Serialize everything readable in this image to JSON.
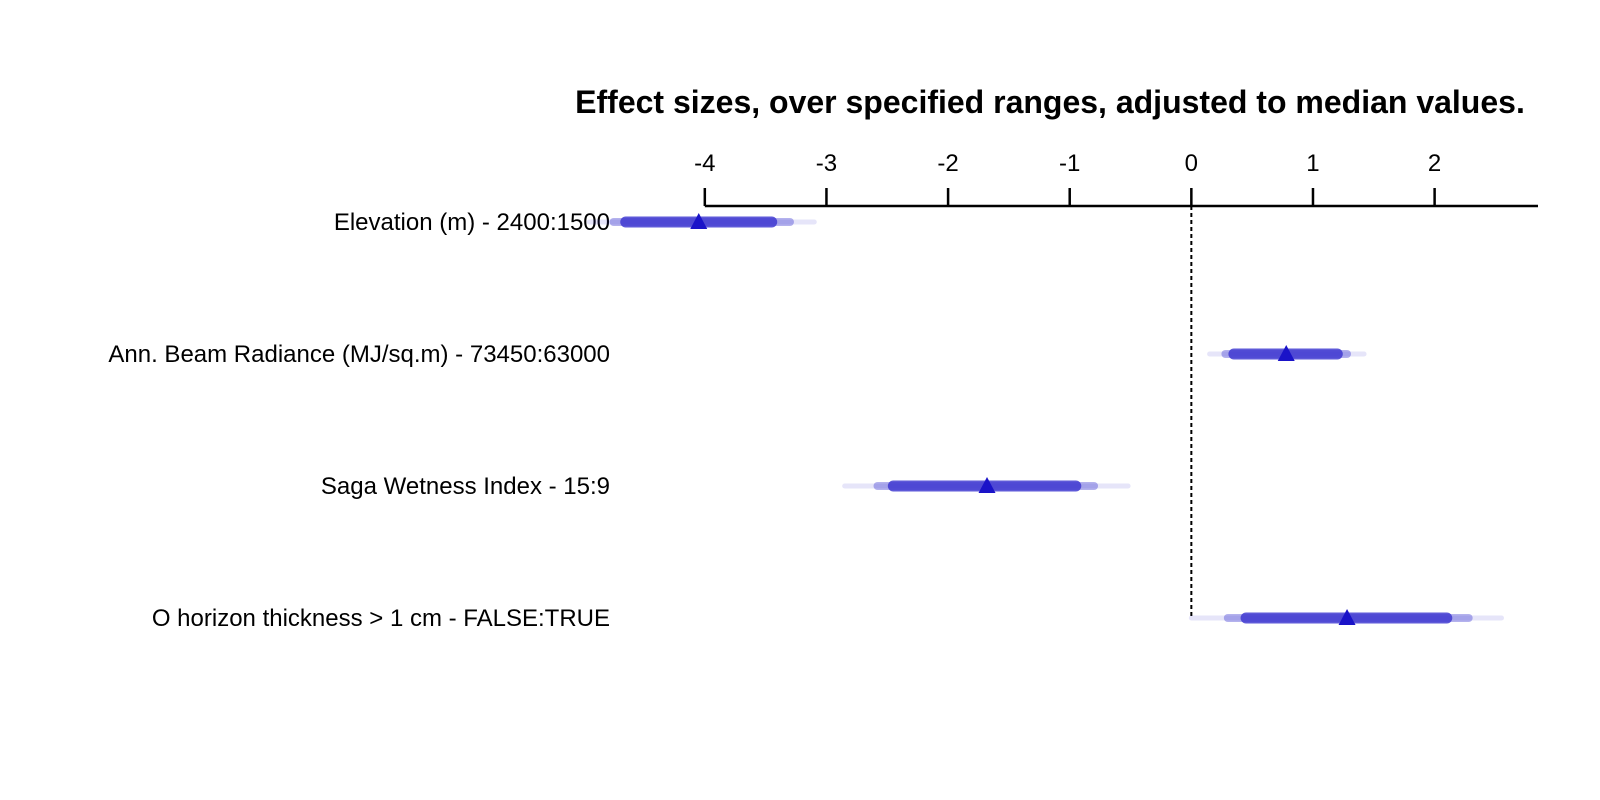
{
  "chart_data": {
    "type": "forest",
    "title": "Effect sizes, over specified ranges, adjusted to median values.",
    "xlim": [
      -4.5,
      2.85
    ],
    "x_ticks": [
      -4,
      -3,
      -2,
      -1,
      0,
      1,
      2
    ],
    "x_tick_labels": [
      "-4",
      "-3",
      "-2",
      "-1",
      "0",
      "1",
      "2"
    ],
    "reference_line": 0,
    "colors": {
      "marker": "#1a13c8",
      "interval": "#3b34cf"
    },
    "rows": [
      {
        "label": "Elevation (m) - 2400:1500",
        "estimate": -4.05,
        "ci_inner": [
          -4.65,
          -3.45
        ],
        "ci_mid": [
          -4.75,
          -3.3
        ],
        "ci_outer": [
          -4.95,
          -3.1
        ]
      },
      {
        "label": "Ann. Beam Radiance (MJ/sq.m) - 73450:63000",
        "estimate": 0.78,
        "ci_inner": [
          0.35,
          1.2
        ],
        "ci_mid": [
          0.28,
          1.28
        ],
        "ci_outer": [
          0.15,
          1.42
        ]
      },
      {
        "label": "Saga Wetness Index - 15:9",
        "estimate": -1.68,
        "ci_inner": [
          -2.45,
          -0.95
        ],
        "ci_mid": [
          -2.58,
          -0.8
        ],
        "ci_outer": [
          -2.85,
          -0.52
        ]
      },
      {
        "label": "O horizon thickness > 1 cm - FALSE:TRUE",
        "estimate": 1.28,
        "ci_inner": [
          0.45,
          2.1
        ],
        "ci_mid": [
          0.3,
          2.28
        ],
        "ci_outer": [
          0.0,
          2.55
        ]
      }
    ]
  }
}
